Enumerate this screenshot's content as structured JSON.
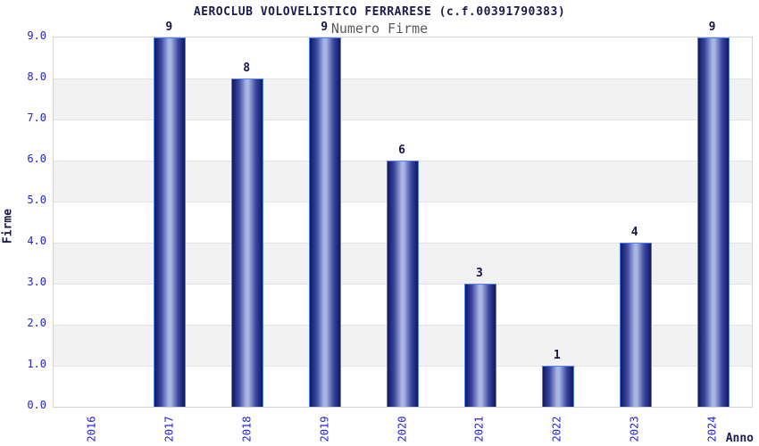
{
  "chart_data": {
    "type": "bar",
    "title": "AEROCLUB VOLOVELISTICO FERRARESE (c.f.00391790383)",
    "subtitle": "Numero Firme",
    "xlabel": "Anno",
    "ylabel": "Firme",
    "categories": [
      "2016",
      "2017",
      "2018",
      "2019",
      "2020",
      "2021",
      "2022",
      "2023",
      "2024"
    ],
    "values": [
      0,
      9,
      8,
      9,
      6,
      3,
      1,
      4,
      9
    ],
    "bar_value_labels": [
      "",
      "9",
      "8",
      "9",
      "6",
      "3",
      "1",
      "4",
      "9"
    ],
    "ylim": [
      0,
      9
    ],
    "ytick_step": 1.0,
    "ytick_labels": [
      "0.0",
      "1.0",
      "2.0",
      "3.0",
      "4.0",
      "5.0",
      "6.0",
      "7.0",
      "8.0",
      "9.0"
    ],
    "grid": "horizontal-bands",
    "legend_position": "none",
    "colors": {
      "bar_dark": "#12175f",
      "bar_mid": "#3a47a0",
      "bar_light": "#a9b5e2",
      "bar_outline": "#4c83f5",
      "tick_label": "#2222dd",
      "title_text": "#1b1b4e",
      "subtitle_text": "#5a5a5a",
      "value_label": "#16164a",
      "band_gray": "#f2f2f2",
      "gridline": "#e4e4e4",
      "plot_border": "#d4d4d4",
      "background": "#ffffff"
    }
  }
}
